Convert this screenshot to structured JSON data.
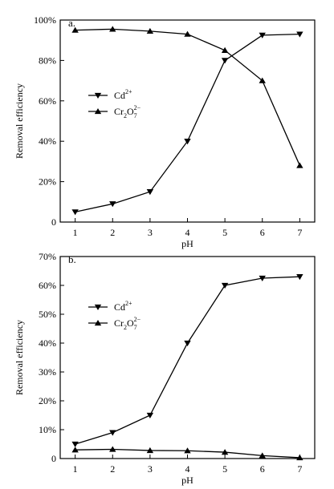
{
  "chart_data": [
    {
      "type": "line",
      "panel_label": "a.",
      "xlabel": "pH",
      "ylabel": "Removal efficiency",
      "x": [
        1,
        2,
        3,
        4,
        5,
        6,
        7
      ],
      "x_tick_labels": [
        "1",
        "2",
        "3",
        "4",
        "5",
        "6",
        "7"
      ],
      "xlim": [
        0.6,
        7.4
      ],
      "ylim": [
        0,
        100
      ],
      "y_ticks": [
        0,
        20,
        40,
        60,
        80,
        100
      ],
      "y_tick_labels": [
        "0",
        "20%",
        "40%",
        "60%",
        "80%",
        "100%"
      ],
      "legend_position": "center-left",
      "grid": false,
      "series": [
        {
          "name": "Cd2+",
          "marker": "triangle-down",
          "legend_base": "Cd",
          "legend_sup": "2+",
          "values": [
            5,
            9,
            15,
            40,
            80,
            92.5,
            93
          ]
        },
        {
          "name": "Cr2O7 2-",
          "marker": "triangle-up",
          "legend_pre": "Cr",
          "legend_sub1": "2",
          "legend_mid": "O",
          "legend_sub2": "7",
          "legend_sup": "2−",
          "values": [
            95,
            95.5,
            94.5,
            93,
            85,
            70,
            28
          ]
        }
      ]
    },
    {
      "type": "line",
      "panel_label": "b.",
      "xlabel": "pH",
      "ylabel": "Removal efficiency",
      "x": [
        1,
        2,
        3,
        4,
        5,
        6,
        7
      ],
      "x_tick_labels": [
        "1",
        "2",
        "3",
        "4",
        "5",
        "6",
        "7"
      ],
      "xlim": [
        0.6,
        7.4
      ],
      "ylim": [
        0,
        70
      ],
      "y_ticks": [
        0,
        10,
        20,
        30,
        40,
        50,
        60,
        70
      ],
      "y_tick_labels": [
        "0",
        "10%",
        "20%",
        "30%",
        "40%",
        "50%",
        "60%",
        "70%"
      ],
      "legend_position": "center-left",
      "grid": false,
      "series": [
        {
          "name": "Cd2+",
          "marker": "triangle-down",
          "legend_base": "Cd",
          "legend_sup": "2+",
          "values": [
            5,
            9,
            15,
            40,
            60,
            62.5,
            63
          ]
        },
        {
          "name": "Cr2O7 2-",
          "marker": "triangle-up",
          "legend_pre": "Cr",
          "legend_sub1": "2",
          "legend_mid": "O",
          "legend_sub2": "7",
          "legend_sup": "2−",
          "values": [
            3,
            3.2,
            2.8,
            2.7,
            2.2,
            1,
            0.3
          ]
        }
      ]
    }
  ]
}
